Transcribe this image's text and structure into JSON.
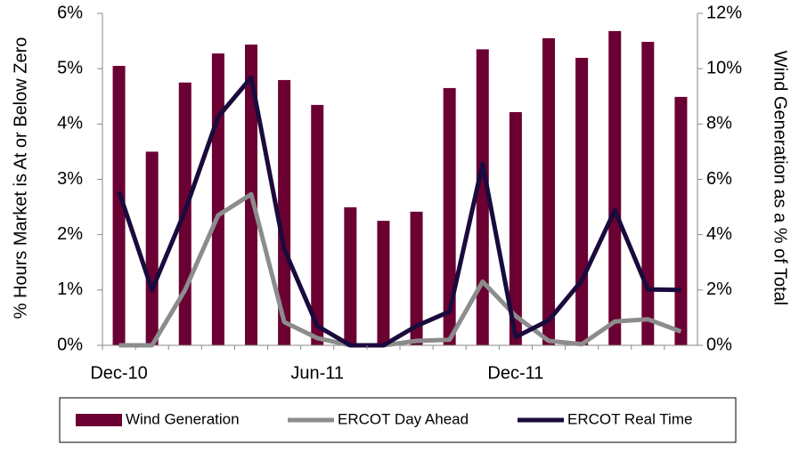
{
  "chart_data": {
    "type": "bar_line",
    "y_label": "% Hours Market is At or Below Zero",
    "y2_label": "Wind Generation as a % of Total",
    "categories": [
      "Dec-10",
      null,
      null,
      null,
      null,
      null,
      "Jun-11",
      null,
      null,
      null,
      null,
      null,
      "Dec-11",
      null,
      null,
      null,
      null,
      null
    ],
    "series": [
      {
        "name": "Wind Generation",
        "kind": "bar",
        "axis": "y2",
        "color": "#6b0032",
        "values": [
          10.1,
          7.0,
          9.5,
          10.55,
          10.87,
          9.59,
          8.69,
          4.99,
          4.5,
          4.83,
          9.3,
          10.7,
          8.43,
          11.1,
          10.39,
          11.36,
          10.97,
          8.98
        ]
      },
      {
        "name": "ERCOT Day Ahead",
        "kind": "line",
        "color": "#8c8c8c",
        "values": [
          0,
          0,
          1.0,
          2.35,
          2.73,
          0.42,
          0.13,
          0,
          0,
          0.08,
          0.1,
          1.15,
          0.53,
          0.08,
          0.02,
          0.43,
          0.47,
          0.25
        ]
      },
      {
        "name": "ERCOT Real Time",
        "kind": "line",
        "color": "#1a0a3d",
        "values": [
          2.78,
          1.0,
          2.43,
          4.13,
          4.84,
          1.74,
          0.35,
          0,
          0,
          0.35,
          0.61,
          3.28,
          0.15,
          0.45,
          1.17,
          2.44,
          1.01,
          1.0
        ]
      }
    ],
    "ylim": [
      0,
      6
    ],
    "yticks": [
      {
        "value": 0,
        "label": "0%"
      },
      {
        "value": 1,
        "label": "1%"
      },
      {
        "value": 2,
        "label": "2%"
      },
      {
        "value": 3,
        "label": "3%"
      },
      {
        "value": 4,
        "label": "4%"
      },
      {
        "value": 5,
        "label": "5%"
      },
      {
        "value": 6,
        "label": "6%"
      }
    ],
    "y2lim": [
      0,
      12
    ],
    "y2ticks": [
      {
        "value": 0,
        "label": "0%"
      },
      {
        "value": 2,
        "label": "2%"
      },
      {
        "value": 4,
        "label": "4%"
      },
      {
        "value": 6,
        "label": "6%"
      },
      {
        "value": 8,
        "label": "8%"
      },
      {
        "value": 10,
        "label": "10%"
      },
      {
        "value": 12,
        "label": "12%"
      }
    ],
    "legend": "bottom"
  }
}
